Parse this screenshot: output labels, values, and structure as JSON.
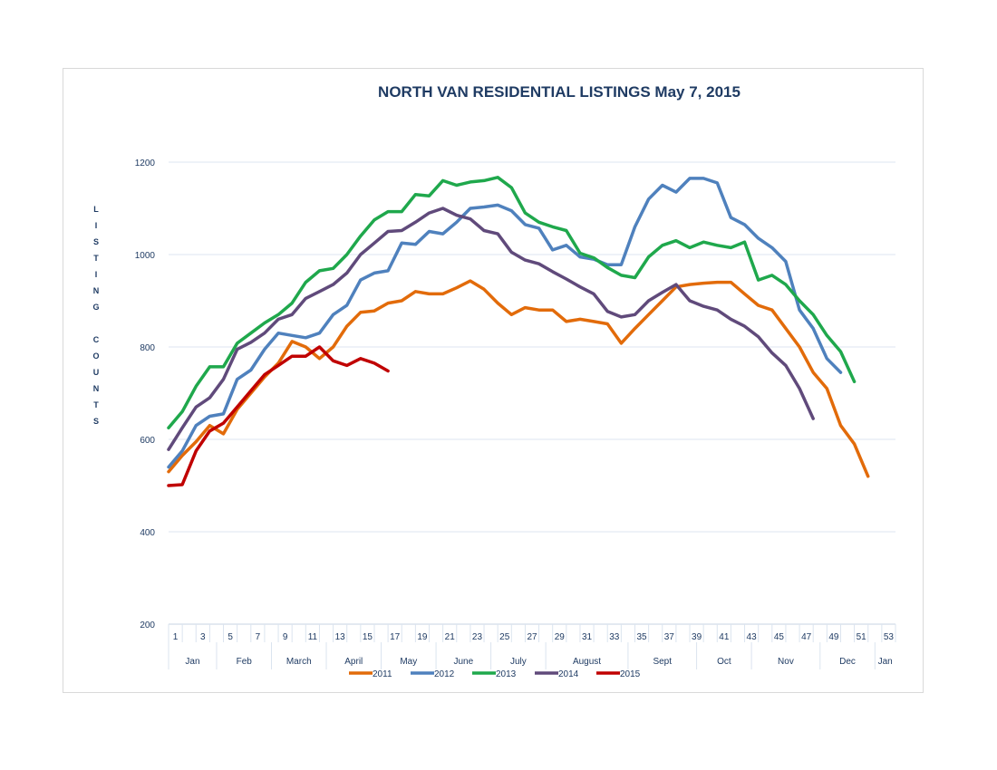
{
  "chart_data": {
    "type": "line",
    "title": "NORTH VAN RESIDENTIAL LISTINGS May 7, 2015",
    "ylabel": "LISTING COUNTS",
    "xlabel": "",
    "ylim": [
      200,
      1200
    ],
    "y_ticks": [
      200,
      400,
      600,
      800,
      1000,
      1200
    ],
    "xlim": [
      1,
      54
    ],
    "x_ticks": [
      1,
      3,
      5,
      7,
      9,
      11,
      13,
      15,
      17,
      19,
      21,
      23,
      25,
      27,
      29,
      31,
      33,
      35,
      37,
      39,
      41,
      43,
      45,
      47,
      49,
      51,
      53
    ],
    "months": [
      {
        "label": "Jan",
        "from": 1,
        "to": 4.5
      },
      {
        "label": "Feb",
        "from": 4.5,
        "to": 8.5
      },
      {
        "label": "March",
        "from": 8.5,
        "to": 12.5
      },
      {
        "label": "April",
        "from": 12.5,
        "to": 16.5
      },
      {
        "label": "May",
        "from": 16.5,
        "to": 20.5
      },
      {
        "label": "June",
        "from": 20.5,
        "to": 24.5
      },
      {
        "label": "July",
        "from": 24.5,
        "to": 28.5
      },
      {
        "label": "August",
        "from": 28.5,
        "to": 34.5
      },
      {
        "label": "Sept",
        "from": 34.5,
        "to": 39.5
      },
      {
        "label": "Oct",
        "from": 39.5,
        "to": 43.5
      },
      {
        "label": "Nov",
        "from": 43.5,
        "to": 48.5
      },
      {
        "label": "Dec",
        "from": 48.5,
        "to": 52.5
      },
      {
        "label": "Jan",
        "from": 52.5,
        "to": 54
      }
    ],
    "grid": true,
    "legend_position": "bottom",
    "series": [
      {
        "name": "2011",
        "color": "#e26b0a",
        "x_start": 1,
        "values": [
          530,
          565,
          595,
          630,
          612,
          665,
          700,
          735,
          765,
          812,
          800,
          775,
          800,
          845,
          875,
          878,
          895,
          900,
          920,
          915,
          915,
          928,
          943,
          925,
          895,
          870,
          885,
          880,
          880,
          855,
          860,
          855,
          850,
          808,
          840,
          870,
          900,
          930,
          935,
          938,
          940,
          940,
          915,
          890,
          880,
          840,
          800,
          745,
          710,
          630,
          590,
          520
        ]
      },
      {
        "name": "2012",
        "color": "#4f81bd",
        "x_start": 1,
        "values": [
          540,
          575,
          630,
          650,
          655,
          730,
          750,
          795,
          830,
          825,
          820,
          830,
          870,
          890,
          945,
          960,
          965,
          1025,
          1022,
          1050,
          1045,
          1070,
          1100,
          1103,
          1107,
          1095,
          1065,
          1057,
          1010,
          1020,
          995,
          990,
          978,
          978,
          1060,
          1120,
          1150,
          1135,
          1165,
          1165,
          1155,
          1080,
          1065,
          1035,
          1015,
          985,
          880,
          840,
          775,
          745
        ]
      },
      {
        "name": "2013",
        "color": "#1fa84c",
        "x_start": 1,
        "values": [
          625,
          660,
          715,
          757,
          757,
          808,
          830,
          852,
          870,
          895,
          940,
          965,
          970,
          1000,
          1040,
          1075,
          1093,
          1093,
          1130,
          1127,
          1160,
          1150,
          1157,
          1160,
          1167,
          1145,
          1090,
          1070,
          1060,
          1052,
          1003,
          993,
          972,
          955,
          950,
          995,
          1020,
          1030,
          1015,
          1027,
          1020,
          1015,
          1027,
          945,
          955,
          935,
          900,
          870,
          825,
          790,
          725
        ]
      },
      {
        "name": "2014",
        "color": "#604a7b",
        "x_start": 1,
        "values": [
          578,
          625,
          670,
          690,
          730,
          795,
          810,
          830,
          860,
          870,
          905,
          920,
          935,
          960,
          1000,
          1025,
          1050,
          1052,
          1070,
          1090,
          1100,
          1085,
          1077,
          1052,
          1045,
          1005,
          988,
          980,
          963,
          947,
          930,
          915,
          877,
          865,
          870,
          900,
          918,
          935,
          900,
          888,
          880,
          860,
          845,
          822,
          787,
          760,
          710,
          645
        ]
      },
      {
        "name": "2015",
        "color": "#c00000",
        "x_start": 1,
        "values": [
          500,
          502,
          575,
          618,
          635,
          670,
          705,
          740,
          760,
          780,
          780,
          800,
          770,
          760,
          775,
          765,
          748
        ]
      }
    ]
  }
}
